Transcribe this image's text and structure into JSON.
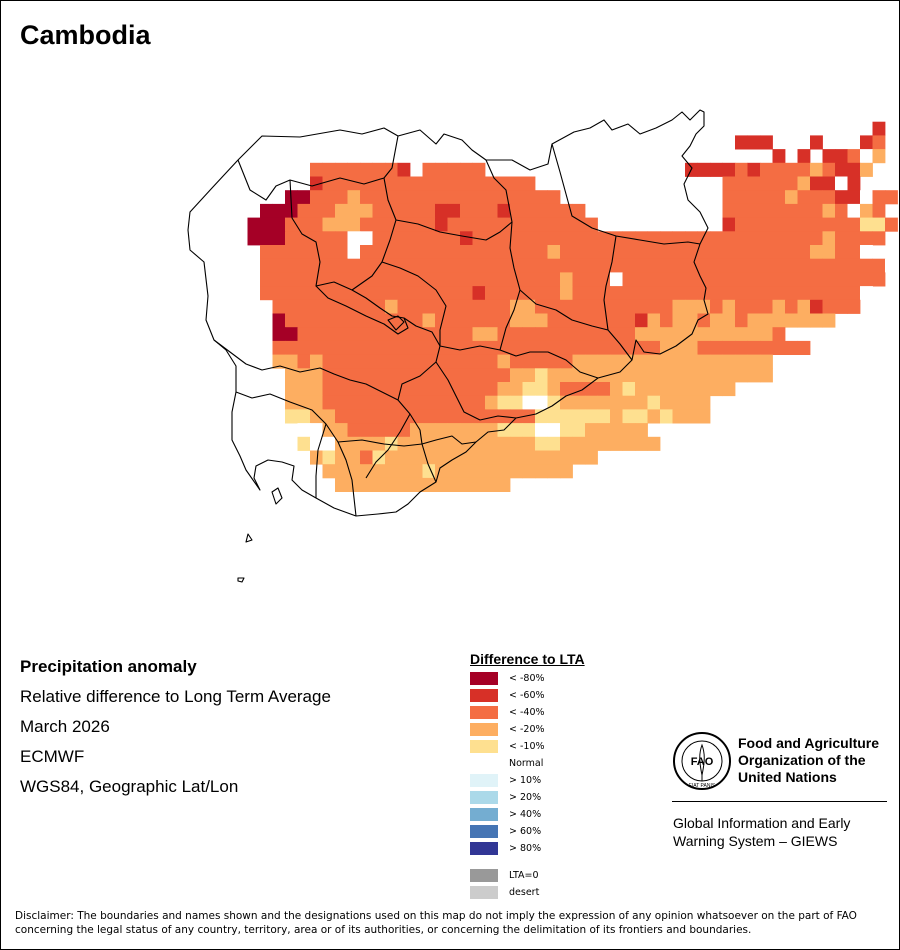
{
  "map": {
    "title": "Cambodia"
  },
  "info": {
    "line1": "Precipitation anomaly",
    "line2": "Relative difference to Long Term Average",
    "line3": "March 2026",
    "line4": "ECMWF",
    "line5": "WGS84, Geographic Lat/Lon"
  },
  "legend": {
    "title": "Difference to LTA",
    "items": [
      {
        "label": "< -80%",
        "color": "#a50026"
      },
      {
        "label": "< -60%",
        "color": "#d73027"
      },
      {
        "label": "< -40%",
        "color": "#f46d43"
      },
      {
        "label": "< -20%",
        "color": "#fdae61"
      },
      {
        "label": "< -10%",
        "color": "#fee090"
      },
      {
        "label": "Normal",
        "color": "#ffffff"
      },
      {
        "label": "> 10%",
        "color": "#e0f3f8"
      },
      {
        "label": "> 20%",
        "color": "#abd9e9"
      },
      {
        "label": "> 40%",
        "color": "#74add1"
      },
      {
        "label": "> 60%",
        "color": "#4575b4"
      },
      {
        "label": "> 80%",
        "color": "#313695"
      },
      {
        "label": "LTA=0",
        "color": "#999999"
      },
      {
        "label": "desert",
        "color": "#cccccc"
      }
    ]
  },
  "org": {
    "logo_text": "FAO",
    "logo_motto": "FIAT PANIS",
    "name_line1": "Food and Agriculture",
    "name_line2": "Organization of the",
    "name_line3": "United Nations",
    "giews_line1": "Global Information and Early",
    "giews_line2": "Warning System – GIEWS"
  },
  "disclaimer": "Disclaimer: The boundaries and names shown and the designations used on this map do not imply the expression of any opinion whatsoever on the part of FAO concerning the legal status of any country, territory, area or of its authorities, or concerning the delimitation of its frontiers and boundaries.",
  "grid_rows": [
    "--------------------------------------------------------------",
    "-----------------------------------------------------------1---",
    "------------------------------------------------111---1---12---",
    "---------------------------------------------------1-1-112.3--",
    "--------------22222221-22222----------------111121222232113---",
    "--------------122222222222222222---------------222222311.1----",
    "------------0022232222222222222222-------------22222322211.22--",
    "----------00022233322222112221222222-----------2222222232.32---",
    "---------0002223332222221222222222222----------12222222222442--",
    "---------00022222..22222221222222222222222222222222222232222---",
    "----------2222222.2222222222222223222222222222222222223322.----",
    "----------22222222222222222222222222222222222222222222222222.---",
    "----------2222222222222222222222223222.222222222222222222222--",
    "----------222222222222222221222222322222222222222222222222.--",
    "-----------22222222232222222223322222222222333232223231222---",
    "-----------022222222222322222233322222221323323323333333----",
    "-----------00222222222222223322222222222333333333332-----",
    "-----------2222222222222222222222222222222333222222222------",
    "-----------3323222222222222223222223333333333333333-------",
    "------------333222222222222222334333333333333333333--------",
    "------------333222222222222223344322223433333333----------",
    "------------3332222222222222344..4333333343333-----------",
    "------------4433222222222222222244444434434333------------",
    "-------------5533222223333333444..4433333------------",
    "-------------4..33334333333333334433333333-------------",
    "--------------34332433333333333333333---------------",
    "---------------33333333433333333333-----------------",
    "----------------33333333333333-----------------------",
    "------------------------------------------------------------"
  ]
}
